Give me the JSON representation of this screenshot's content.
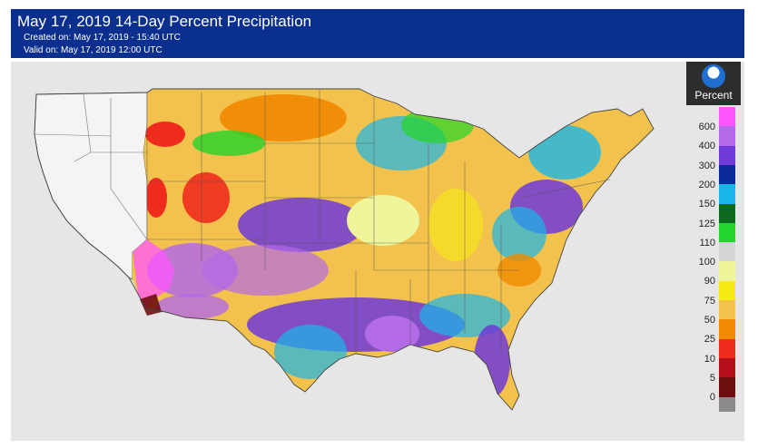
{
  "header": {
    "title": "May 17, 2019 14-Day Percent Precipitation",
    "created": "Created on: May 17, 2019 - 15:40 UTC",
    "valid": "Valid on: May 17, 2019 12:00 UTC"
  },
  "logo": {
    "label": "Percent"
  },
  "legend": [
    {
      "label": "600",
      "color": "#ff55ff"
    },
    {
      "label": "400",
      "color": "#b36ae6"
    },
    {
      "label": "300",
      "color": "#6e3ad8"
    },
    {
      "label": "200",
      "color": "#0d2a9a"
    },
    {
      "label": "150",
      "color": "#19b7e8"
    },
    {
      "label": "125",
      "color": "#0b6a1e"
    },
    {
      "label": "110",
      "color": "#22d52a"
    },
    {
      "label": "100",
      "color": "#d6d6d6"
    },
    {
      "label": "90",
      "color": "#eef59a"
    },
    {
      "label": "75",
      "color": "#f5ea14"
    },
    {
      "label": "50",
      "color": "#f3c24c"
    },
    {
      "label": "25",
      "color": "#f08a00"
    },
    {
      "label": "10",
      "color": "#ef2b1e"
    },
    {
      "label": "5",
      "color": "#b5101a"
    },
    {
      "label": "0",
      "color": "#6e0e0e"
    }
  ],
  "nodata_color": "#8a8a8a"
}
